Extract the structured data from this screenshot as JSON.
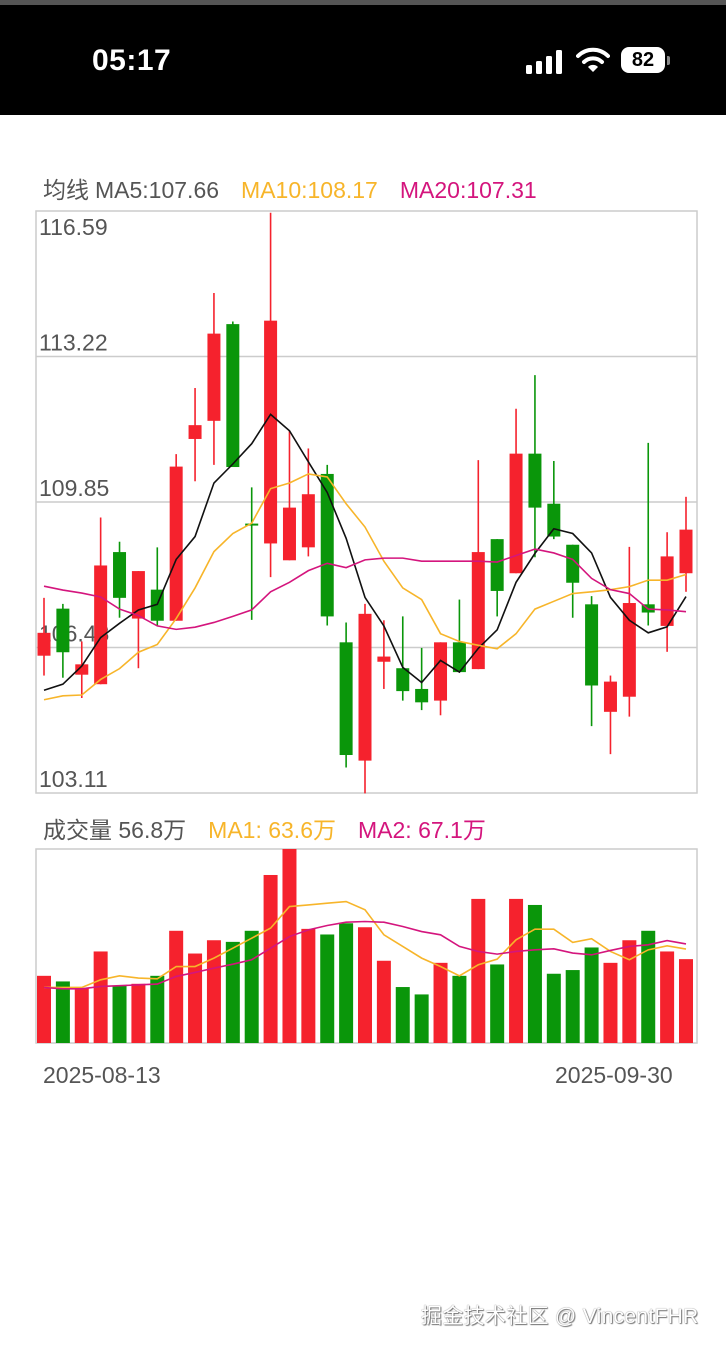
{
  "status_bar": {
    "time": "05:17",
    "battery": "82",
    "icons": [
      "signal-icon",
      "wifi-icon",
      "battery-icon"
    ]
  },
  "price_legend": {
    "prefix": "均线",
    "ma5": "MA5:107.66",
    "ma10": "MA10:108.17",
    "ma20": "MA20:107.31"
  },
  "volume_legend": {
    "label": "成交量 56.8万",
    "ma1": "MA1: 63.6万",
    "ma2": "MA2: 67.1万"
  },
  "dates": {
    "start": "2025-08-13",
    "end": "2025-09-30"
  },
  "watermark": "掘金技术社区 @ VincentFHR",
  "colors": {
    "up": "#f5222d",
    "down": "#0a960a",
    "ma5": "#111111",
    "ma10": "#f7b52a",
    "ma20": "#d4157d",
    "grid": "#cccccc",
    "axis_text": "#555555"
  },
  "chart_data": [
    {
      "type": "candlestick",
      "y_ticks": [
        "116.59",
        "113.22",
        "109.85",
        "106.48",
        "103.11"
      ],
      "ylim": [
        103.11,
        116.59
      ],
      "grid": true,
      "x_range": [
        "2025-08-13",
        "2025-09-30"
      ],
      "candles": [
        {
          "o": 106.29,
          "h": 107.63,
          "l": 105.83,
          "c": 106.82
        },
        {
          "o": 107.38,
          "h": 107.49,
          "l": 105.78,
          "c": 106.37
        },
        {
          "o": 105.85,
          "h": 106.62,
          "l": 105.31,
          "c": 106.09
        },
        {
          "o": 105.63,
          "h": 109.49,
          "l": 105.63,
          "c": 108.38
        },
        {
          "o": 108.69,
          "h": 108.93,
          "l": 107.17,
          "c": 107.63
        },
        {
          "o": 107.15,
          "h": 108.25,
          "l": 106.0,
          "c": 108.25
        },
        {
          "o": 107.82,
          "h": 108.8,
          "l": 106.99,
          "c": 107.1
        },
        {
          "o": 107.1,
          "h": 110.96,
          "l": 107.1,
          "c": 110.67
        },
        {
          "o": 111.31,
          "h": 112.49,
          "l": 110.33,
          "c": 111.63
        },
        {
          "o": 111.73,
          "h": 114.69,
          "l": 110.71,
          "c": 113.75
        },
        {
          "o": 113.97,
          "h": 114.03,
          "l": 110.66,
          "c": 110.66
        },
        {
          "o": 109.35,
          "h": 110.19,
          "l": 107.12,
          "c": 109.33
        },
        {
          "o": 108.89,
          "h": 116.55,
          "l": 108.11,
          "c": 114.05
        },
        {
          "o": 108.5,
          "h": 111.5,
          "l": 108.5,
          "c": 109.72
        },
        {
          "o": 108.8,
          "h": 111.09,
          "l": 108.59,
          "c": 110.03
        },
        {
          "o": 110.5,
          "h": 110.71,
          "l": 106.99,
          "c": 107.2
        },
        {
          "o": 106.6,
          "h": 107.06,
          "l": 103.7,
          "c": 103.99
        },
        {
          "o": 103.86,
          "h": 107.49,
          "l": 103.1,
          "c": 107.26
        },
        {
          "o": 106.15,
          "h": 107.11,
          "l": 105.52,
          "c": 106.27
        },
        {
          "o": 106.0,
          "h": 107.2,
          "l": 105.25,
          "c": 105.47
        },
        {
          "o": 105.52,
          "h": 106.47,
          "l": 105.03,
          "c": 105.21
        },
        {
          "o": 105.25,
          "h": 106.6,
          "l": 104.91,
          "c": 106.6
        },
        {
          "o": 106.6,
          "h": 107.59,
          "l": 105.91,
          "c": 105.91
        },
        {
          "o": 105.98,
          "h": 110.82,
          "l": 105.98,
          "c": 108.69
        },
        {
          "o": 108.99,
          "h": 108.99,
          "l": 107.2,
          "c": 107.79
        },
        {
          "o": 108.2,
          "h": 112.01,
          "l": 108.2,
          "c": 110.97
        },
        {
          "o": 110.97,
          "h": 112.79,
          "l": 108.57,
          "c": 109.72
        },
        {
          "o": 109.81,
          "h": 110.8,
          "l": 108.99,
          "c": 109.05
        },
        {
          "o": 108.86,
          "h": 108.86,
          "l": 107.17,
          "c": 107.98
        },
        {
          "o": 107.48,
          "h": 107.67,
          "l": 104.66,
          "c": 105.6
        },
        {
          "o": 104.99,
          "h": 105.83,
          "l": 104.01,
          "c": 105.69
        },
        {
          "o": 105.34,
          "h": 108.81,
          "l": 104.88,
          "c": 107.51
        },
        {
          "o": 107.48,
          "h": 111.22,
          "l": 106.99,
          "c": 107.29
        },
        {
          "o": 106.98,
          "h": 109.15,
          "l": 106.38,
          "c": 108.59
        },
        {
          "o": 108.2,
          "h": 109.97,
          "l": 107.77,
          "c": 109.21
        }
      ],
      "series": [
        {
          "name": "MA5",
          "values": [
            105.49,
            105.63,
            106.05,
            106.71,
            107.04,
            107.35,
            107.48,
            108.52,
            109.05,
            110.29,
            110.73,
            111.2,
            111.88,
            111.5,
            110.78,
            110.07,
            109.01,
            107.64,
            106.98,
            106.02,
            105.67,
            106.18,
            105.91,
            106.46,
            106.89,
            107.99,
            108.66,
            109.23,
            109.12,
            108.67,
            107.64,
            107.11,
            106.82,
            106.96,
            107.66
          ]
        },
        {
          "name": "MA10",
          "values": [
            105.27,
            105.36,
            105.38,
            105.74,
            105.99,
            106.37,
            106.55,
            107.15,
            107.86,
            108.7,
            109.12,
            109.36,
            110.16,
            110.29,
            110.5,
            110.43,
            109.81,
            109.27,
            108.48,
            107.86,
            107.59,
            106.8,
            106.62,
            106.53,
            106.45,
            106.8,
            107.37,
            107.55,
            107.73,
            107.77,
            107.82,
            107.89,
            108.04,
            108.04,
            108.17
          ]
        },
        {
          "name": "MA20",
          "values": [
            107.9,
            107.81,
            107.74,
            107.65,
            107.37,
            107.22,
            106.98,
            106.9,
            106.95,
            107.06,
            107.2,
            107.35,
            107.77,
            107.99,
            108.26,
            108.43,
            108.33,
            108.51,
            108.55,
            108.55,
            108.48,
            108.48,
            108.48,
            108.48,
            108.46,
            108.61,
            108.76,
            108.67,
            108.52,
            108.08,
            107.82,
            107.73,
            107.37,
            107.35,
            107.31
          ]
        }
      ]
    },
    {
      "type": "bar",
      "unit": "万",
      "ylim": [
        0,
        131.4
      ],
      "values": [
        45.5,
        41.7,
        37.2,
        62.0,
        38.8,
        40.1,
        45.5,
        76.0,
        60.6,
        69.6,
        68.5,
        76.0,
        113.8,
        131.4,
        77.3,
        73.5,
        81.1,
        78.4,
        55.7,
        37.9,
        32.9,
        54.3,
        45.5,
        97.6,
        53.2,
        97.6,
        93.5,
        46.9,
        49.4,
        64.7,
        54.3,
        69.6,
        76.0,
        62.0,
        56.8
      ],
      "series": [
        {
          "name": "MA1",
          "values": [
            37.6,
            37.6,
            37.6,
            42.8,
            45.5,
            44.0,
            43.5,
            51.8,
            51.8,
            57.5,
            64.2,
            71.0,
            77.8,
            92.4,
            93.5,
            94.7,
            95.8,
            90.2,
            73.3,
            65.4,
            57.5,
            51.8,
            45.5,
            53.0,
            56.8,
            69.9,
            77.1,
            77.1,
            68.1,
            70.6,
            62.0,
            56.4,
            63.1,
            65.8,
            63.6
          ]
        },
        {
          "name": "MA2",
          "values": [
            37.6,
            36.7,
            36.7,
            38.3,
            38.8,
            39.4,
            39.9,
            45.1,
            47.8,
            50.7,
            53.4,
            56.4,
            64.2,
            72.1,
            76.6,
            79.6,
            81.8,
            82.3,
            81.8,
            78.9,
            75.5,
            73.3,
            65.4,
            62.0,
            60.2,
            62.0,
            63.1,
            63.8,
            60.9,
            59.7,
            62.7,
            65.4,
            66.5,
            69.4,
            67.1
          ]
        }
      ]
    }
  ]
}
